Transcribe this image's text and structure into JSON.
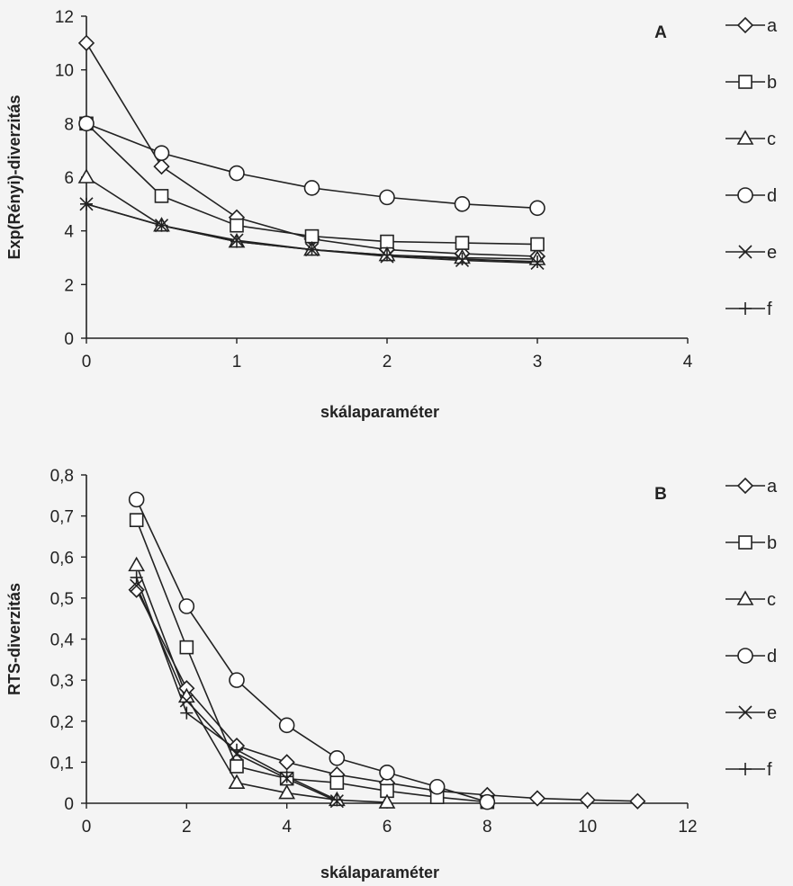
{
  "chart_data": [
    {
      "type": "line",
      "panel": "A",
      "xlabel": "skálaparaméter",
      "ylabel": "Exp(Rényi)-diverzitás",
      "xlim": [
        0,
        4
      ],
      "ylim": [
        0,
        12
      ],
      "xticks": [
        "0",
        "1",
        "2",
        "3",
        "4"
      ],
      "yticks": [
        "0",
        "2",
        "4",
        "6",
        "8",
        "10",
        "12"
      ],
      "grid": false,
      "legend": "right",
      "series": [
        {
          "name": "a",
          "marker": "diamond",
          "x": [
            0,
            0.5,
            1,
            1.5,
            2,
            2.5,
            3
          ],
          "values": [
            11.0,
            6.4,
            4.5,
            3.7,
            3.3,
            3.15,
            3.05
          ]
        },
        {
          "name": "b",
          "marker": "square",
          "x": [
            0,
            0.5,
            1,
            1.5,
            2,
            2.5,
            3
          ],
          "values": [
            8.0,
            5.3,
            4.2,
            3.8,
            3.6,
            3.55,
            3.5
          ]
        },
        {
          "name": "c",
          "marker": "triangle",
          "x": [
            0,
            0.5,
            1,
            1.5,
            2,
            2.5,
            3
          ],
          "values": [
            6.0,
            4.2,
            3.6,
            3.3,
            3.1,
            3.0,
            2.95
          ]
        },
        {
          "name": "d",
          "marker": "circle",
          "x": [
            0,
            0.5,
            1,
            1.5,
            2,
            2.5,
            3
          ],
          "values": [
            8.0,
            6.9,
            6.15,
            5.6,
            5.25,
            5.0,
            4.85
          ]
        },
        {
          "name": "e",
          "marker": "x",
          "x": [
            0,
            0.5,
            1,
            1.5,
            2,
            2.5,
            3
          ],
          "values": [
            5.0,
            4.2,
            3.65,
            3.3,
            3.05,
            2.9,
            2.8
          ]
        },
        {
          "name": "f",
          "marker": "plus",
          "x": [
            0,
            0.5,
            1,
            1.5,
            2,
            2.5,
            3
          ],
          "values": [
            5.0,
            4.2,
            3.6,
            3.3,
            3.1,
            2.95,
            2.85
          ]
        }
      ]
    },
    {
      "type": "line",
      "panel": "B",
      "xlabel": "skálaparaméter",
      "ylabel": "RTS-diverzitás",
      "xlim": [
        0,
        12
      ],
      "ylim": [
        0,
        0.8
      ],
      "xticks": [
        "0",
        "2",
        "4",
        "6",
        "8",
        "10",
        "12"
      ],
      "yticks": [
        "0",
        "0,1",
        "0,2",
        "0,3",
        "0,4",
        "0,5",
        "0,6",
        "0,7",
        "0,8"
      ],
      "grid": false,
      "legend": "right",
      "series": [
        {
          "name": "a",
          "marker": "diamond",
          "x": [
            1,
            2,
            3,
            4,
            5,
            6,
            7,
            8,
            9,
            10,
            11
          ],
          "values": [
            0.52,
            0.28,
            0.14,
            0.1,
            0.07,
            0.05,
            0.03,
            0.02,
            0.012,
            0.008,
            0.005
          ]
        },
        {
          "name": "b",
          "marker": "square",
          "x": [
            1,
            2,
            3,
            4,
            5,
            6,
            7,
            8
          ],
          "values": [
            0.69,
            0.38,
            0.09,
            0.06,
            0.05,
            0.03,
            0.015,
            0.003
          ]
        },
        {
          "name": "c",
          "marker": "triangle",
          "x": [
            1,
            2,
            3,
            4,
            5,
            6
          ],
          "values": [
            0.58,
            0.26,
            0.05,
            0.025,
            0.008,
            0.002
          ]
        },
        {
          "name": "d",
          "marker": "circle",
          "x": [
            1,
            2,
            3,
            4,
            5,
            6,
            7,
            8
          ],
          "values": [
            0.74,
            0.48,
            0.3,
            0.19,
            0.11,
            0.075,
            0.04,
            0.003
          ]
        },
        {
          "name": "e",
          "marker": "x",
          "x": [
            1,
            2,
            3,
            4,
            5
          ],
          "values": [
            0.53,
            0.25,
            0.12,
            0.06,
            0.005
          ]
        },
        {
          "name": "f",
          "marker": "plus",
          "x": [
            1,
            2,
            3,
            4,
            5
          ],
          "values": [
            0.55,
            0.22,
            0.13,
            0.065,
            0.008
          ]
        }
      ]
    }
  ]
}
